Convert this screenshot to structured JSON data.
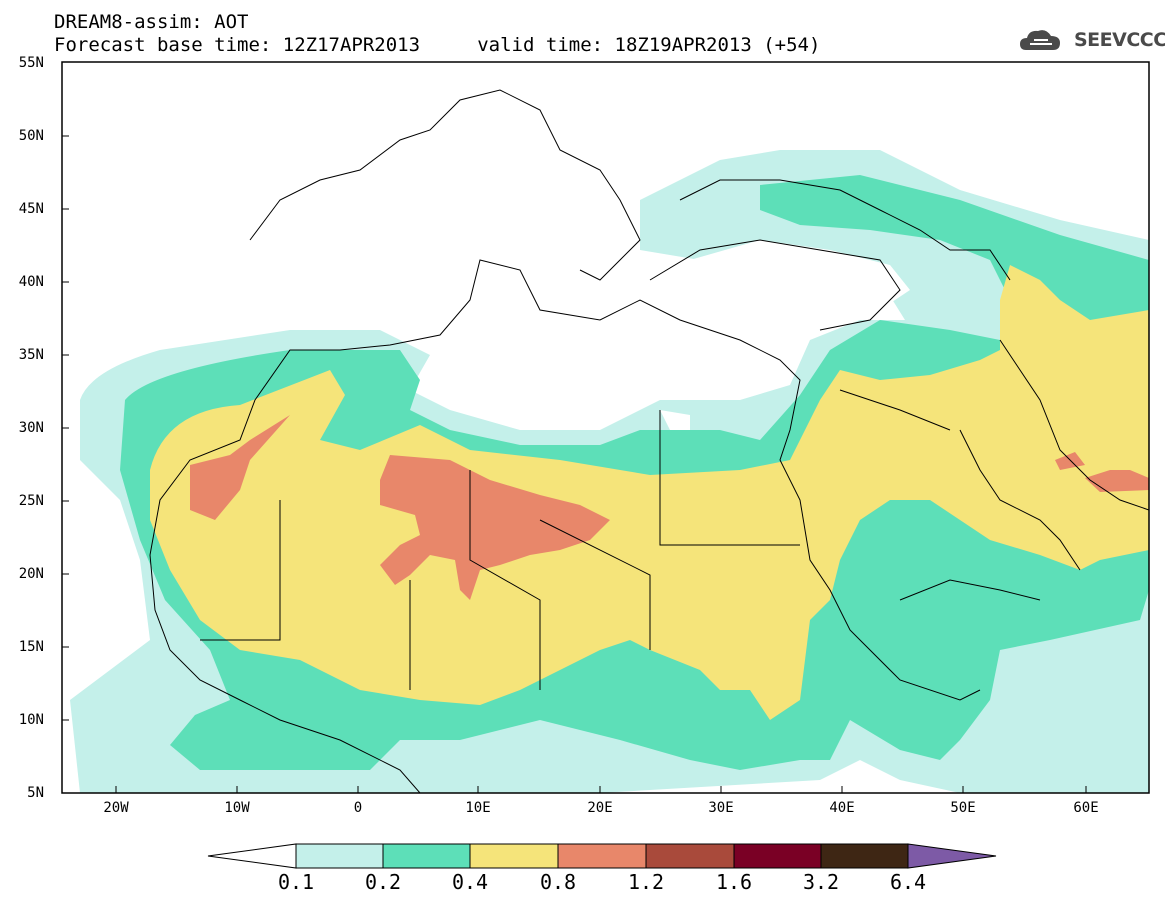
{
  "header": {
    "title_line1": "DREAM8-assim: AOT",
    "title_line2": "Forecast base time: 12Z17APR2013     valid time: 18Z19APR2013 (+54)",
    "logo_text": "SEEVCCC"
  },
  "map": {
    "lat_labels": [
      "55N",
      "50N",
      "45N",
      "40N",
      "35N",
      "30N",
      "25N",
      "20N",
      "15N",
      "10N",
      "5N"
    ],
    "lon_labels": [
      "20W",
      "10W",
      "0",
      "10E",
      "20E",
      "30E",
      "40E",
      "50E",
      "60E"
    ],
    "extent": {
      "lon_min": -25,
      "lon_max": 65,
      "lat_min": 5,
      "lat_max": 55
    },
    "field": "Aerosol Optical Thickness (dust)"
  },
  "colorbar": {
    "levels": [
      "0.1",
      "0.2",
      "0.4",
      "0.8",
      "1.2",
      "1.6",
      "3.2",
      "6.4"
    ],
    "colors": [
      "#ffffff",
      "#c4f0ea",
      "#5ddfb8",
      "#f5e47a",
      "#e8876a",
      "#a94a3b",
      "#7a0025",
      "#3e2614",
      "#7d5aa6"
    ]
  }
}
